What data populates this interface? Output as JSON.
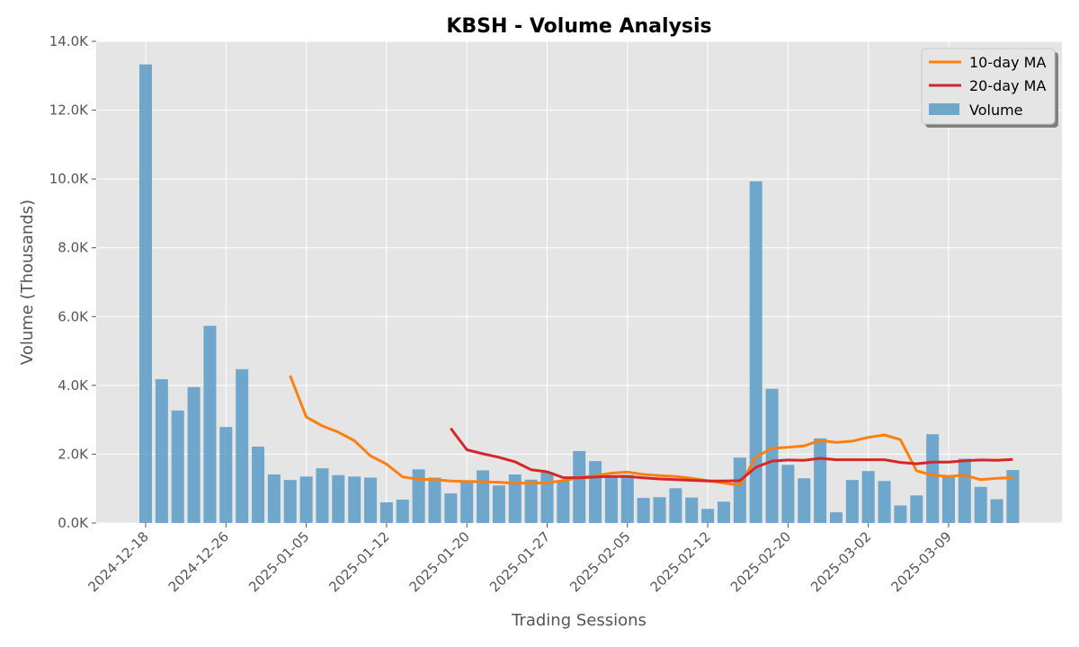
{
  "chart_data": {
    "type": "bar",
    "title": "KBSH - Volume Analysis",
    "xlabel": "Trading Sessions",
    "ylabel": "Volume (Thousands)",
    "ylim": [
      0,
      14000
    ],
    "yticks": [
      {
        "value": 0,
        "label": "0.0K"
      },
      {
        "value": 2000,
        "label": "2.0K"
      },
      {
        "value": 4000,
        "label": "4.0K"
      },
      {
        "value": 6000,
        "label": "6.0K"
      },
      {
        "value": 8000,
        "label": "8.0K"
      },
      {
        "value": 10000,
        "label": "10.0K"
      },
      {
        "value": 12000,
        "label": "12.0K"
      },
      {
        "value": 14000,
        "label": "14.0K"
      }
    ],
    "xticks": [
      {
        "index": 0,
        "label": "2024-12-18"
      },
      {
        "index": 5,
        "label": "2024-12-26"
      },
      {
        "index": 10,
        "label": "2025-01-05"
      },
      {
        "index": 15,
        "label": "2025-01-12"
      },
      {
        "index": 20,
        "label": "2025-01-20"
      },
      {
        "index": 25,
        "label": "2025-01-27"
      },
      {
        "index": 30,
        "label": "2025-02-05"
      },
      {
        "index": 35,
        "label": "2025-02-12"
      },
      {
        "index": 40,
        "label": "2025-02-20"
      },
      {
        "index": 45,
        "label": "2025-03-02"
      },
      {
        "index": 50,
        "label": "2025-03-09"
      }
    ],
    "grid": true,
    "legend_position": "top-right",
    "series": [
      {
        "name": "Volume",
        "kind": "bar",
        "color": "#5b9bc8",
        "values": [
          13330,
          4180,
          3270,
          3950,
          5730,
          2790,
          4470,
          2220,
          1410,
          1250,
          1350,
          1590,
          1390,
          1350,
          1320,
          600,
          680,
          1560,
          1320,
          860,
          1220,
          1530,
          1090,
          1410,
          1260,
          1480,
          1230,
          2090,
          1800,
          1380,
          1400,
          730,
          750,
          1010,
          740,
          410,
          620,
          1900,
          9930,
          3900,
          1690,
          1300,
          2460,
          310,
          1250,
          1510,
          1220,
          510,
          800,
          2580,
          1360,
          1870,
          1050,
          690,
          1540
        ]
      },
      {
        "name": "10-day MA",
        "kind": "line",
        "color": "#ff7f0e",
        "values": [
          null,
          null,
          null,
          null,
          null,
          null,
          null,
          null,
          null,
          4280,
          3080,
          2820,
          2640,
          2390,
          1950,
          1710,
          1340,
          1270,
          1260,
          1220,
          1210,
          1200,
          1180,
          1160,
          1160,
          1170,
          1230,
          1320,
          1370,
          1450,
          1480,
          1410,
          1380,
          1350,
          1300,
          1230,
          1160,
          1100,
          1920,
          2170,
          2200,
          2240,
          2400,
          2340,
          2380,
          2490,
          2560,
          2420,
          1520,
          1390,
          1350,
          1390,
          1260,
          1300,
          1320
        ]
      },
      {
        "name": "20-day MA",
        "kind": "line",
        "color": "#d62728",
        "values": [
          null,
          null,
          null,
          null,
          null,
          null,
          null,
          null,
          null,
          null,
          null,
          null,
          null,
          null,
          null,
          null,
          null,
          null,
          null,
          2750,
          2130,
          2010,
          1910,
          1780,
          1550,
          1490,
          1320,
          1310,
          1340,
          1350,
          1350,
          1310,
          1280,
          1260,
          1240,
          1220,
          1220,
          1230,
          1620,
          1800,
          1830,
          1820,
          1880,
          1840,
          1840,
          1840,
          1840,
          1760,
          1720,
          1770,
          1770,
          1810,
          1830,
          1820,
          1850
        ]
      }
    ]
  }
}
